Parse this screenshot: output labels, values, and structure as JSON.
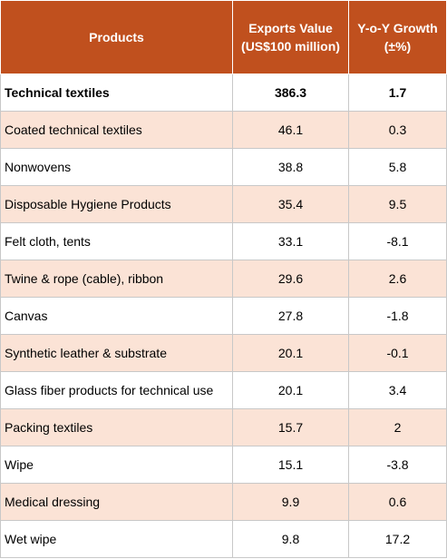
{
  "table": {
    "headers": {
      "products": "Products",
      "exports_line1": "Exports Value",
      "exports_line2": "(US$100 million)",
      "growth_line1": "Y-o-Y Growth",
      "growth_line2": "(±%)"
    },
    "colors": {
      "header_bg": "#c0501e",
      "band_bg": "#fbe3d6"
    },
    "rows": [
      {
        "product": "Technical textiles",
        "exports": "386.3",
        "growth": "1.7"
      },
      {
        "product": "Coated technical textiles",
        "exports": "46.1",
        "growth": "0.3"
      },
      {
        "product": "Nonwovens",
        "exports": "38.8",
        "growth": "5.8"
      },
      {
        "product": "Disposable Hygiene Products",
        "exports": "35.4",
        "growth": "9.5"
      },
      {
        "product": "Felt cloth, tents",
        "exports": "33.1",
        "growth": "-8.1"
      },
      {
        "product": "Twine & rope (cable), ribbon",
        "exports": "29.6",
        "growth": "2.6"
      },
      {
        "product": "Canvas",
        "exports": "27.8",
        "growth": "-1.8"
      },
      {
        "product": "Synthetic leather & substrate",
        "exports": "20.1",
        "growth": "-0.1"
      },
      {
        "product": "Glass fiber products for technical use",
        "exports": "20.1",
        "growth": "3.4"
      },
      {
        "product": "Packing textiles",
        "exports": "15.7",
        "growth": "2"
      },
      {
        "product": "Wipe",
        "exports": "15.1",
        "growth": "-3.8"
      },
      {
        "product": "Medical dressing",
        "exports": "9.9",
        "growth": "0.6"
      },
      {
        "product": "Wet wipe",
        "exports": "9.8",
        "growth": "17.2"
      }
    ]
  }
}
